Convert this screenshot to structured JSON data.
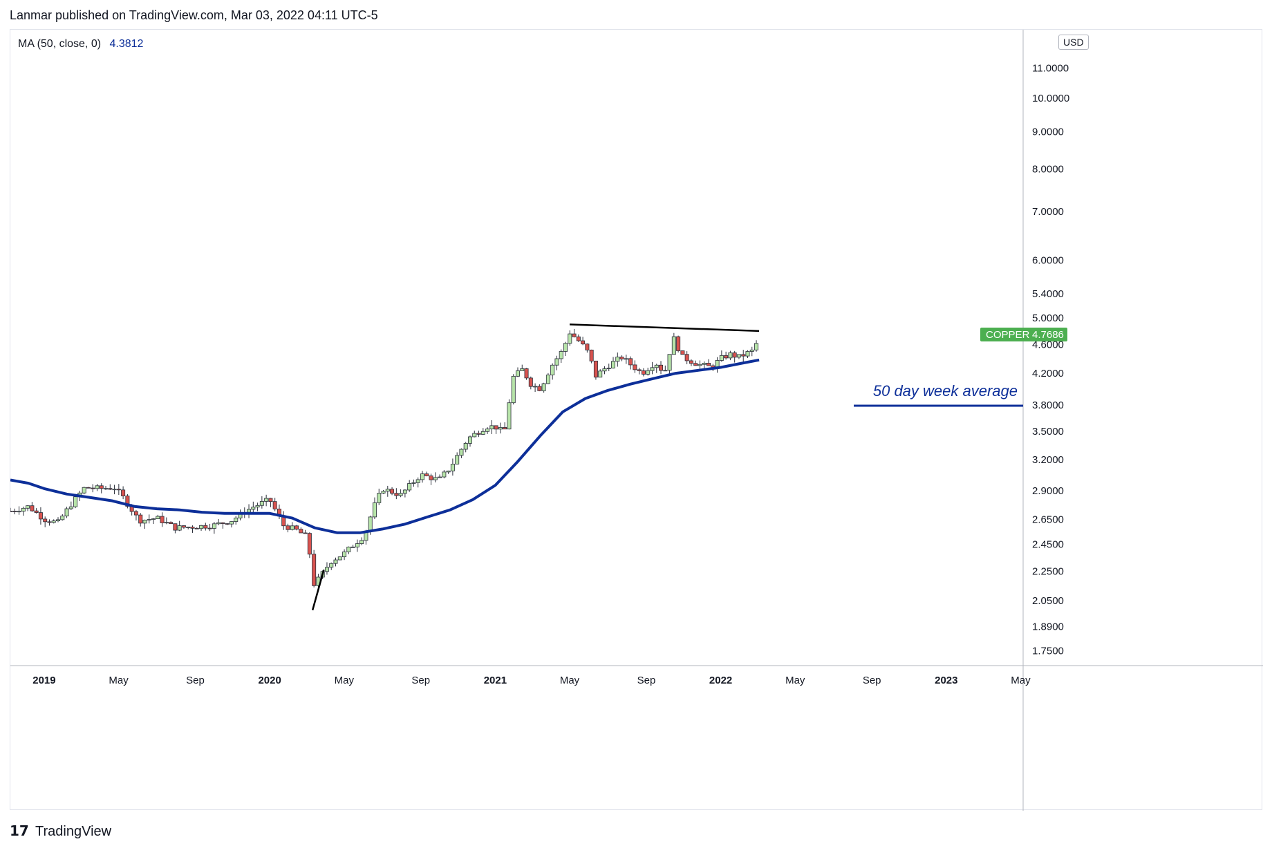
{
  "header": {
    "text": "Lanmar published on TradingView.com, Mar 03, 2022 04:11 UTC-5"
  },
  "legend": {
    "label": "MA (50, close, 0)",
    "value": "4.3812"
  },
  "price_axis": {
    "currency": "USD"
  },
  "footer": {
    "logo": "17",
    "brand": "TradingView"
  },
  "colors": {
    "up": "#26a69a",
    "up_fill": "#b7e4a9",
    "down": "#ef5350",
    "down_fill": "#d9534f",
    "ma": "#0d2f99",
    "badge": "#4caf50"
  },
  "chart_data": {
    "type": "candlestick",
    "title": "COPPER weekly",
    "symbol": "COPPER",
    "last_price": "4.7686",
    "yscale": "log",
    "ylim": [
      1.7,
      12.2
    ],
    "xlim": [
      2018.85,
      2023.35
    ],
    "y_ticks": [
      "11.0000",
      "10.0000",
      "9.0000",
      "8.0000",
      "7.0000",
      "6.0000",
      "5.4000",
      "5.0000",
      "4.6000",
      "4.2000",
      "3.8000",
      "3.5000",
      "3.2000",
      "2.9000",
      "2.6500",
      "2.4500",
      "2.2500",
      "2.0500",
      "1.8900",
      "1.7500"
    ],
    "x_ticks": [
      {
        "label": "2019",
        "t": 2019.0,
        "bold": true
      },
      {
        "label": "May",
        "t": 2019.33,
        "bold": false
      },
      {
        "label": "Sep",
        "t": 2019.67,
        "bold": false
      },
      {
        "label": "2020",
        "t": 2020.0,
        "bold": true
      },
      {
        "label": "May",
        "t": 2020.33,
        "bold": false
      },
      {
        "label": "Sep",
        "t": 2020.67,
        "bold": false
      },
      {
        "label": "2021",
        "t": 2021.0,
        "bold": true
      },
      {
        "label": "May",
        "t": 2021.33,
        "bold": false
      },
      {
        "label": "Sep",
        "t": 2021.67,
        "bold": false
      },
      {
        "label": "2022",
        "t": 2022.0,
        "bold": true
      },
      {
        "label": "May",
        "t": 2022.33,
        "bold": false
      },
      {
        "label": "Sep",
        "t": 2022.67,
        "bold": false
      },
      {
        "label": "2023",
        "t": 2023.0,
        "bold": true
      },
      {
        "label": "May",
        "t": 2023.33,
        "bold": false
      }
    ],
    "anchors": [
      [
        2018.85,
        2.72
      ],
      [
        2018.93,
        2.76
      ],
      [
        2019.0,
        2.65
      ],
      [
        2019.06,
        2.62
      ],
      [
        2019.12,
        2.78
      ],
      [
        2019.18,
        2.93
      ],
      [
        2019.25,
        2.92
      ],
      [
        2019.31,
        2.93
      ],
      [
        2019.35,
        2.84
      ],
      [
        2019.42,
        2.64
      ],
      [
        2019.5,
        2.66
      ],
      [
        2019.58,
        2.58
      ],
      [
        2019.67,
        2.59
      ],
      [
        2019.75,
        2.6
      ],
      [
        2019.83,
        2.64
      ],
      [
        2019.92,
        2.75
      ],
      [
        2020.0,
        2.82
      ],
      [
        2020.06,
        2.6
      ],
      [
        2020.12,
        2.56
      ],
      [
        2020.17,
        2.5
      ],
      [
        2020.19,
        2.15
      ],
      [
        2020.22,
        2.2
      ],
      [
        2020.27,
        2.32
      ],
      [
        2020.33,
        2.38
      ],
      [
        2020.42,
        2.52
      ],
      [
        2020.46,
        2.75
      ],
      [
        2020.5,
        2.92
      ],
      [
        2020.58,
        2.86
      ],
      [
        2020.67,
        3.05
      ],
      [
        2020.75,
        3.0
      ],
      [
        2020.8,
        3.12
      ],
      [
        2020.88,
        3.42
      ],
      [
        2020.96,
        3.55
      ],
      [
        2021.0,
        3.55
      ],
      [
        2021.04,
        3.48
      ],
      [
        2021.08,
        4.15
      ],
      [
        2021.12,
        4.25
      ],
      [
        2021.16,
        4.05
      ],
      [
        2021.2,
        4.0
      ],
      [
        2021.25,
        4.3
      ],
      [
        2021.3,
        4.52
      ],
      [
        2021.33,
        4.78
      ],
      [
        2021.38,
        4.62
      ],
      [
        2021.42,
        4.45
      ],
      [
        2021.44,
        4.15
      ],
      [
        2021.5,
        4.3
      ],
      [
        2021.56,
        4.42
      ],
      [
        2021.6,
        4.32
      ],
      [
        2021.65,
        4.2
      ],
      [
        2021.71,
        4.35
      ],
      [
        2021.75,
        4.2
      ],
      [
        2021.79,
        4.7
      ],
      [
        2021.83,
        4.42
      ],
      [
        2021.9,
        4.32
      ],
      [
        2021.96,
        4.28
      ],
      [
        2022.0,
        4.4
      ],
      [
        2022.04,
        4.46
      ],
      [
        2022.08,
        4.42
      ],
      [
        2022.12,
        4.48
      ],
      [
        2022.15,
        4.52
      ],
      [
        2022.17,
        4.7686
      ]
    ],
    "series": [
      {
        "name": "MA (50, close, 0)",
        "type": "line",
        "points": [
          [
            2018.85,
            3.0
          ],
          [
            2018.93,
            2.97
          ],
          [
            2019.0,
            2.92
          ],
          [
            2019.1,
            2.87
          ],
          [
            2019.2,
            2.84
          ],
          [
            2019.3,
            2.81
          ],
          [
            2019.4,
            2.76
          ],
          [
            2019.5,
            2.74
          ],
          [
            2019.6,
            2.73
          ],
          [
            2019.7,
            2.71
          ],
          [
            2019.8,
            2.7
          ],
          [
            2019.9,
            2.7
          ],
          [
            2020.0,
            2.7
          ],
          [
            2020.1,
            2.66
          ],
          [
            2020.2,
            2.58
          ],
          [
            2020.3,
            2.54
          ],
          [
            2020.4,
            2.54
          ],
          [
            2020.5,
            2.57
          ],
          [
            2020.6,
            2.61
          ],
          [
            2020.7,
            2.67
          ],
          [
            2020.8,
            2.73
          ],
          [
            2020.9,
            2.82
          ],
          [
            2021.0,
            2.95
          ],
          [
            2021.1,
            3.18
          ],
          [
            2021.2,
            3.45
          ],
          [
            2021.3,
            3.72
          ],
          [
            2021.4,
            3.88
          ],
          [
            2021.5,
            3.98
          ],
          [
            2021.6,
            4.06
          ],
          [
            2021.7,
            4.13
          ],
          [
            2021.8,
            4.2
          ],
          [
            2021.9,
            4.24
          ],
          [
            2022.0,
            4.28
          ],
          [
            2022.1,
            4.34
          ],
          [
            2022.17,
            4.3812
          ]
        ]
      }
    ],
    "annotations": [
      {
        "type": "trendline",
        "from": [
          2021.33,
          4.9
        ],
        "to": [
          2022.17,
          4.8
        ]
      },
      {
        "type": "trendline",
        "from": [
          2020.19,
          1.99
        ],
        "to": [
          2020.24,
          2.26
        ]
      },
      {
        "type": "text",
        "text": "50 day week average"
      }
    ]
  }
}
